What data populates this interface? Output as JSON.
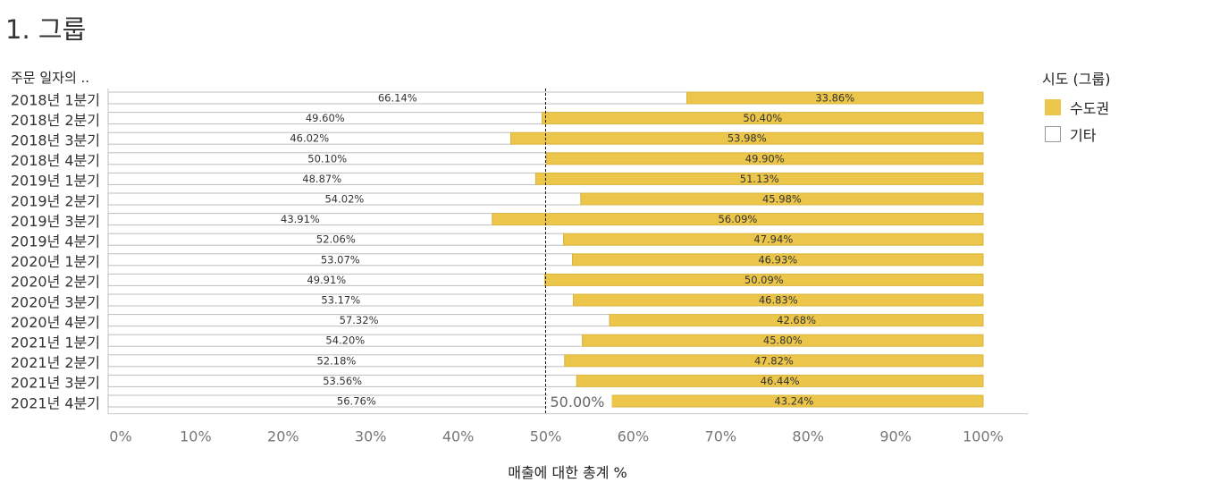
{
  "title": "1. 그룹",
  "row_header": "주문 일자의 ..",
  "legend": {
    "title": "시도 (그룹)",
    "items": [
      {
        "label": "수도권",
        "color": "#ecc64a"
      },
      {
        "label": "기타",
        "color": "#ffffff"
      }
    ]
  },
  "reference_label": "50.00%",
  "chart_data": {
    "type": "bar",
    "stacked": true,
    "orientation": "horizontal",
    "categories": [
      "2018년 1분기",
      "2018년 2분기",
      "2018년 3분기",
      "2018년 4분기",
      "2019년 1분기",
      "2019년 2분기",
      "2019년 3분기",
      "2019년 4분기",
      "2020년 1분기",
      "2020년 2분기",
      "2020년 3분기",
      "2020년 4분기",
      "2021년 1분기",
      "2021년 2분기",
      "2021년 3분기",
      "2021년 4분기"
    ],
    "series": [
      {
        "name": "기타",
        "color": "#ffffff",
        "values": [
          66.14,
          49.6,
          46.02,
          50.1,
          48.87,
          54.02,
          43.91,
          52.06,
          53.07,
          49.91,
          53.17,
          57.32,
          54.2,
          52.18,
          53.56,
          56.76
        ],
        "labels": [
          "66.14%",
          "49.60%",
          "46.02%",
          "50.10%",
          "48.87%",
          "54.02%",
          "43.91%",
          "52.06%",
          "53.07%",
          "49.91%",
          "53.17%",
          "57.32%",
          "54.20%",
          "52.18%",
          "53.56%",
          "56.76%"
        ]
      },
      {
        "name": "수도권",
        "color": "#ecc64a",
        "values": [
          33.86,
          50.4,
          53.98,
          49.9,
          51.13,
          45.98,
          56.09,
          47.94,
          46.93,
          50.09,
          46.83,
          42.68,
          45.8,
          47.82,
          46.44,
          43.24
        ],
        "labels": [
          "33.86%",
          "50.40%",
          "53.98%",
          "49.90%",
          "51.13%",
          "45.98%",
          "56.09%",
          "47.94%",
          "46.93%",
          "50.09%",
          "46.83%",
          "42.68%",
          "45.80%",
          "47.82%",
          "46.44%",
          "43.24%"
        ]
      }
    ],
    "xlim": [
      0,
      100
    ],
    "xticks": [
      "0%",
      "10%",
      "20%",
      "30%",
      "40%",
      "50%",
      "60%",
      "70%",
      "80%",
      "90%",
      "100%"
    ],
    "xlabel": "매출에 대한 총계 %",
    "reference_line": 50,
    "grid": false
  }
}
